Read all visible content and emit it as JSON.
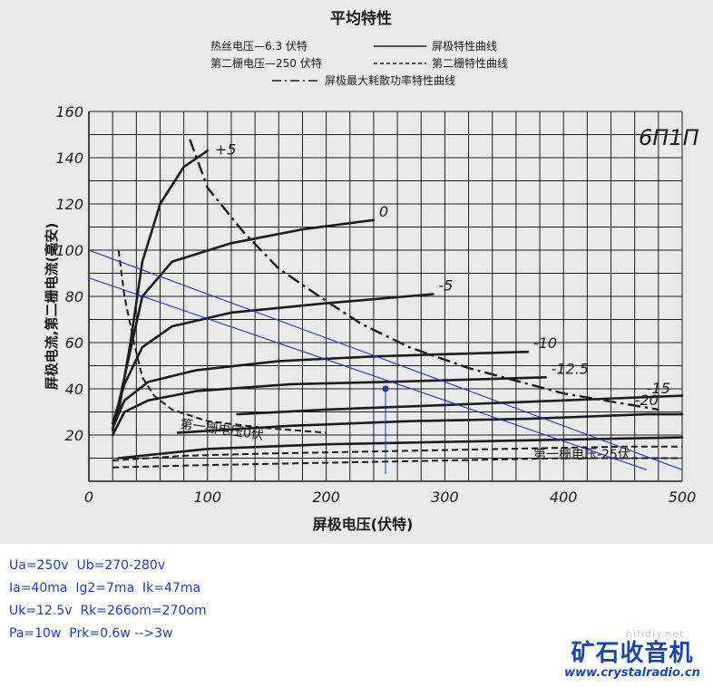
{
  "chart_data": {
    "type": "line",
    "title": "平均特性",
    "header_notes": {
      "filament": "热丝电压—6.3 伏特",
      "screen": "第二栅电压—250 伏特",
      "plate_curve": "屏极特性曲线",
      "screen_curve": "第二栅特性曲线",
      "max_dissipation": "屏极最大耗散功率特性曲线"
    },
    "tube_label": "6П1П",
    "xlabel": "屏极电压(伏特)",
    "ylabel": "屏极电流,第二栅电流(毫安)",
    "xlim": [
      0,
      500
    ],
    "ylim": [
      0,
      160
    ],
    "xticks": [
      "0",
      "100",
      "200",
      "300",
      "400",
      "500"
    ],
    "yticks": [
      "20",
      "40",
      "60",
      "80",
      "100",
      "120",
      "140",
      "160"
    ],
    "grid": true,
    "plate_curves": [
      {
        "name": "+5",
        "points": [
          [
            25,
            30
          ],
          [
            35,
            60
          ],
          [
            45,
            95
          ],
          [
            60,
            120
          ],
          [
            80,
            136
          ],
          [
            100,
            143
          ]
        ]
      },
      {
        "name": "0",
        "points": [
          [
            20,
            22
          ],
          [
            30,
            45
          ],
          [
            45,
            80
          ],
          [
            70,
            95
          ],
          [
            120,
            103
          ],
          [
            180,
            109
          ],
          [
            240,
            113
          ]
        ]
      },
      {
        "name": "-5",
        "points": [
          [
            20,
            25
          ],
          [
            30,
            42
          ],
          [
            45,
            58
          ],
          [
            70,
            67
          ],
          [
            120,
            73
          ],
          [
            200,
            77
          ],
          [
            290,
            81
          ]
        ]
      },
      {
        "name": "-10",
        "points": [
          [
            20,
            23
          ],
          [
            30,
            35
          ],
          [
            50,
            43
          ],
          [
            90,
            48
          ],
          [
            160,
            52
          ],
          [
            240,
            54
          ],
          [
            300,
            55
          ],
          [
            370,
            56
          ]
        ]
      },
      {
        "name": "-12.5",
        "points": [
          [
            20,
            20
          ],
          [
            30,
            30
          ],
          [
            50,
            35
          ],
          [
            90,
            39
          ],
          [
            170,
            42
          ],
          [
            250,
            43
          ],
          [
            320,
            44
          ],
          [
            385,
            45
          ]
        ]
      },
      {
        "name": "-15",
        "points": [
          [
            125,
            29
          ],
          [
            200,
            31
          ],
          [
            300,
            33
          ],
          [
            400,
            35
          ],
          [
            500,
            37
          ]
        ]
      },
      {
        "name": "-20",
        "points": [
          [
            75,
            21
          ],
          [
            170,
            24
          ],
          [
            270,
            26
          ],
          [
            370,
            27
          ],
          [
            470,
            29
          ],
          [
            500,
            29
          ]
        ]
      },
      {
        "name": "-25",
        "points": [
          [
            25,
            10
          ],
          [
            100,
            14
          ],
          [
            200,
            16
          ],
          [
            300,
            17
          ],
          [
            400,
            18
          ],
          [
            500,
            19
          ]
        ]
      }
    ],
    "screen_curves": [
      {
        "name": "0伏",
        "points": [
          [
            25,
            100
          ],
          [
            30,
            80
          ],
          [
            38,
            60
          ],
          [
            45,
            45
          ],
          [
            55,
            37
          ],
          [
            70,
            31
          ],
          [
            100,
            26
          ],
          [
            150,
            23
          ],
          [
            200,
            21
          ]
        ]
      },
      {
        "name": "-15_screen",
        "points": [
          [
            20,
            9
          ],
          [
            80,
            11
          ],
          [
            150,
            12
          ],
          [
            250,
            13
          ],
          [
            350,
            14
          ],
          [
            450,
            15
          ],
          [
            500,
            15
          ]
        ]
      },
      {
        "name": "-25_screen",
        "points": [
          [
            20,
            6
          ],
          [
            100,
            7
          ],
          [
            200,
            8
          ],
          [
            300,
            9
          ],
          [
            400,
            10
          ],
          [
            500,
            10
          ]
        ]
      }
    ],
    "screen_labels": {
      "zero": "第一栅电压0伏",
      "neg25": "第一栅电压-25伏"
    },
    "max_dissipation_curve": {
      "points": [
        [
          85,
          148
        ],
        [
          100,
          127
        ],
        [
          130,
          108
        ],
        [
          160,
          92
        ],
        [
          200,
          78
        ],
        [
          230,
          68
        ],
        [
          270,
          58
        ],
        [
          320,
          49
        ],
        [
          400,
          38
        ],
        [
          480,
          31
        ]
      ]
    },
    "load_lines": [
      {
        "name": "load-line-1",
        "points": [
          [
            0,
            100
          ],
          [
            500,
            5
          ]
        ]
      },
      {
        "name": "load-line-2",
        "points": [
          [
            0,
            88
          ],
          [
            470,
            5
          ]
        ]
      }
    ],
    "operating_point": {
      "x": 250,
      "y": 40
    }
  },
  "notes": [
    "Ua=250v  Ub=270-280v",
    "Ia=40ma  Ig2=7ma  Ik=47ma",
    "Uk=12.5v  Rk=266om=270om",
    "Pa=10w  Prk=0.6w -->3w"
  ],
  "logo": {
    "cn": "矿石收音机",
    "url": "www.crystalradio.cn",
    "watermark": "hifidiy.net"
  },
  "colors": {
    "ink": "#1c1c1c",
    "paper": "#e9e9e9",
    "annotation_blue": "#1f3fae",
    "load_line": "#2233bb"
  }
}
